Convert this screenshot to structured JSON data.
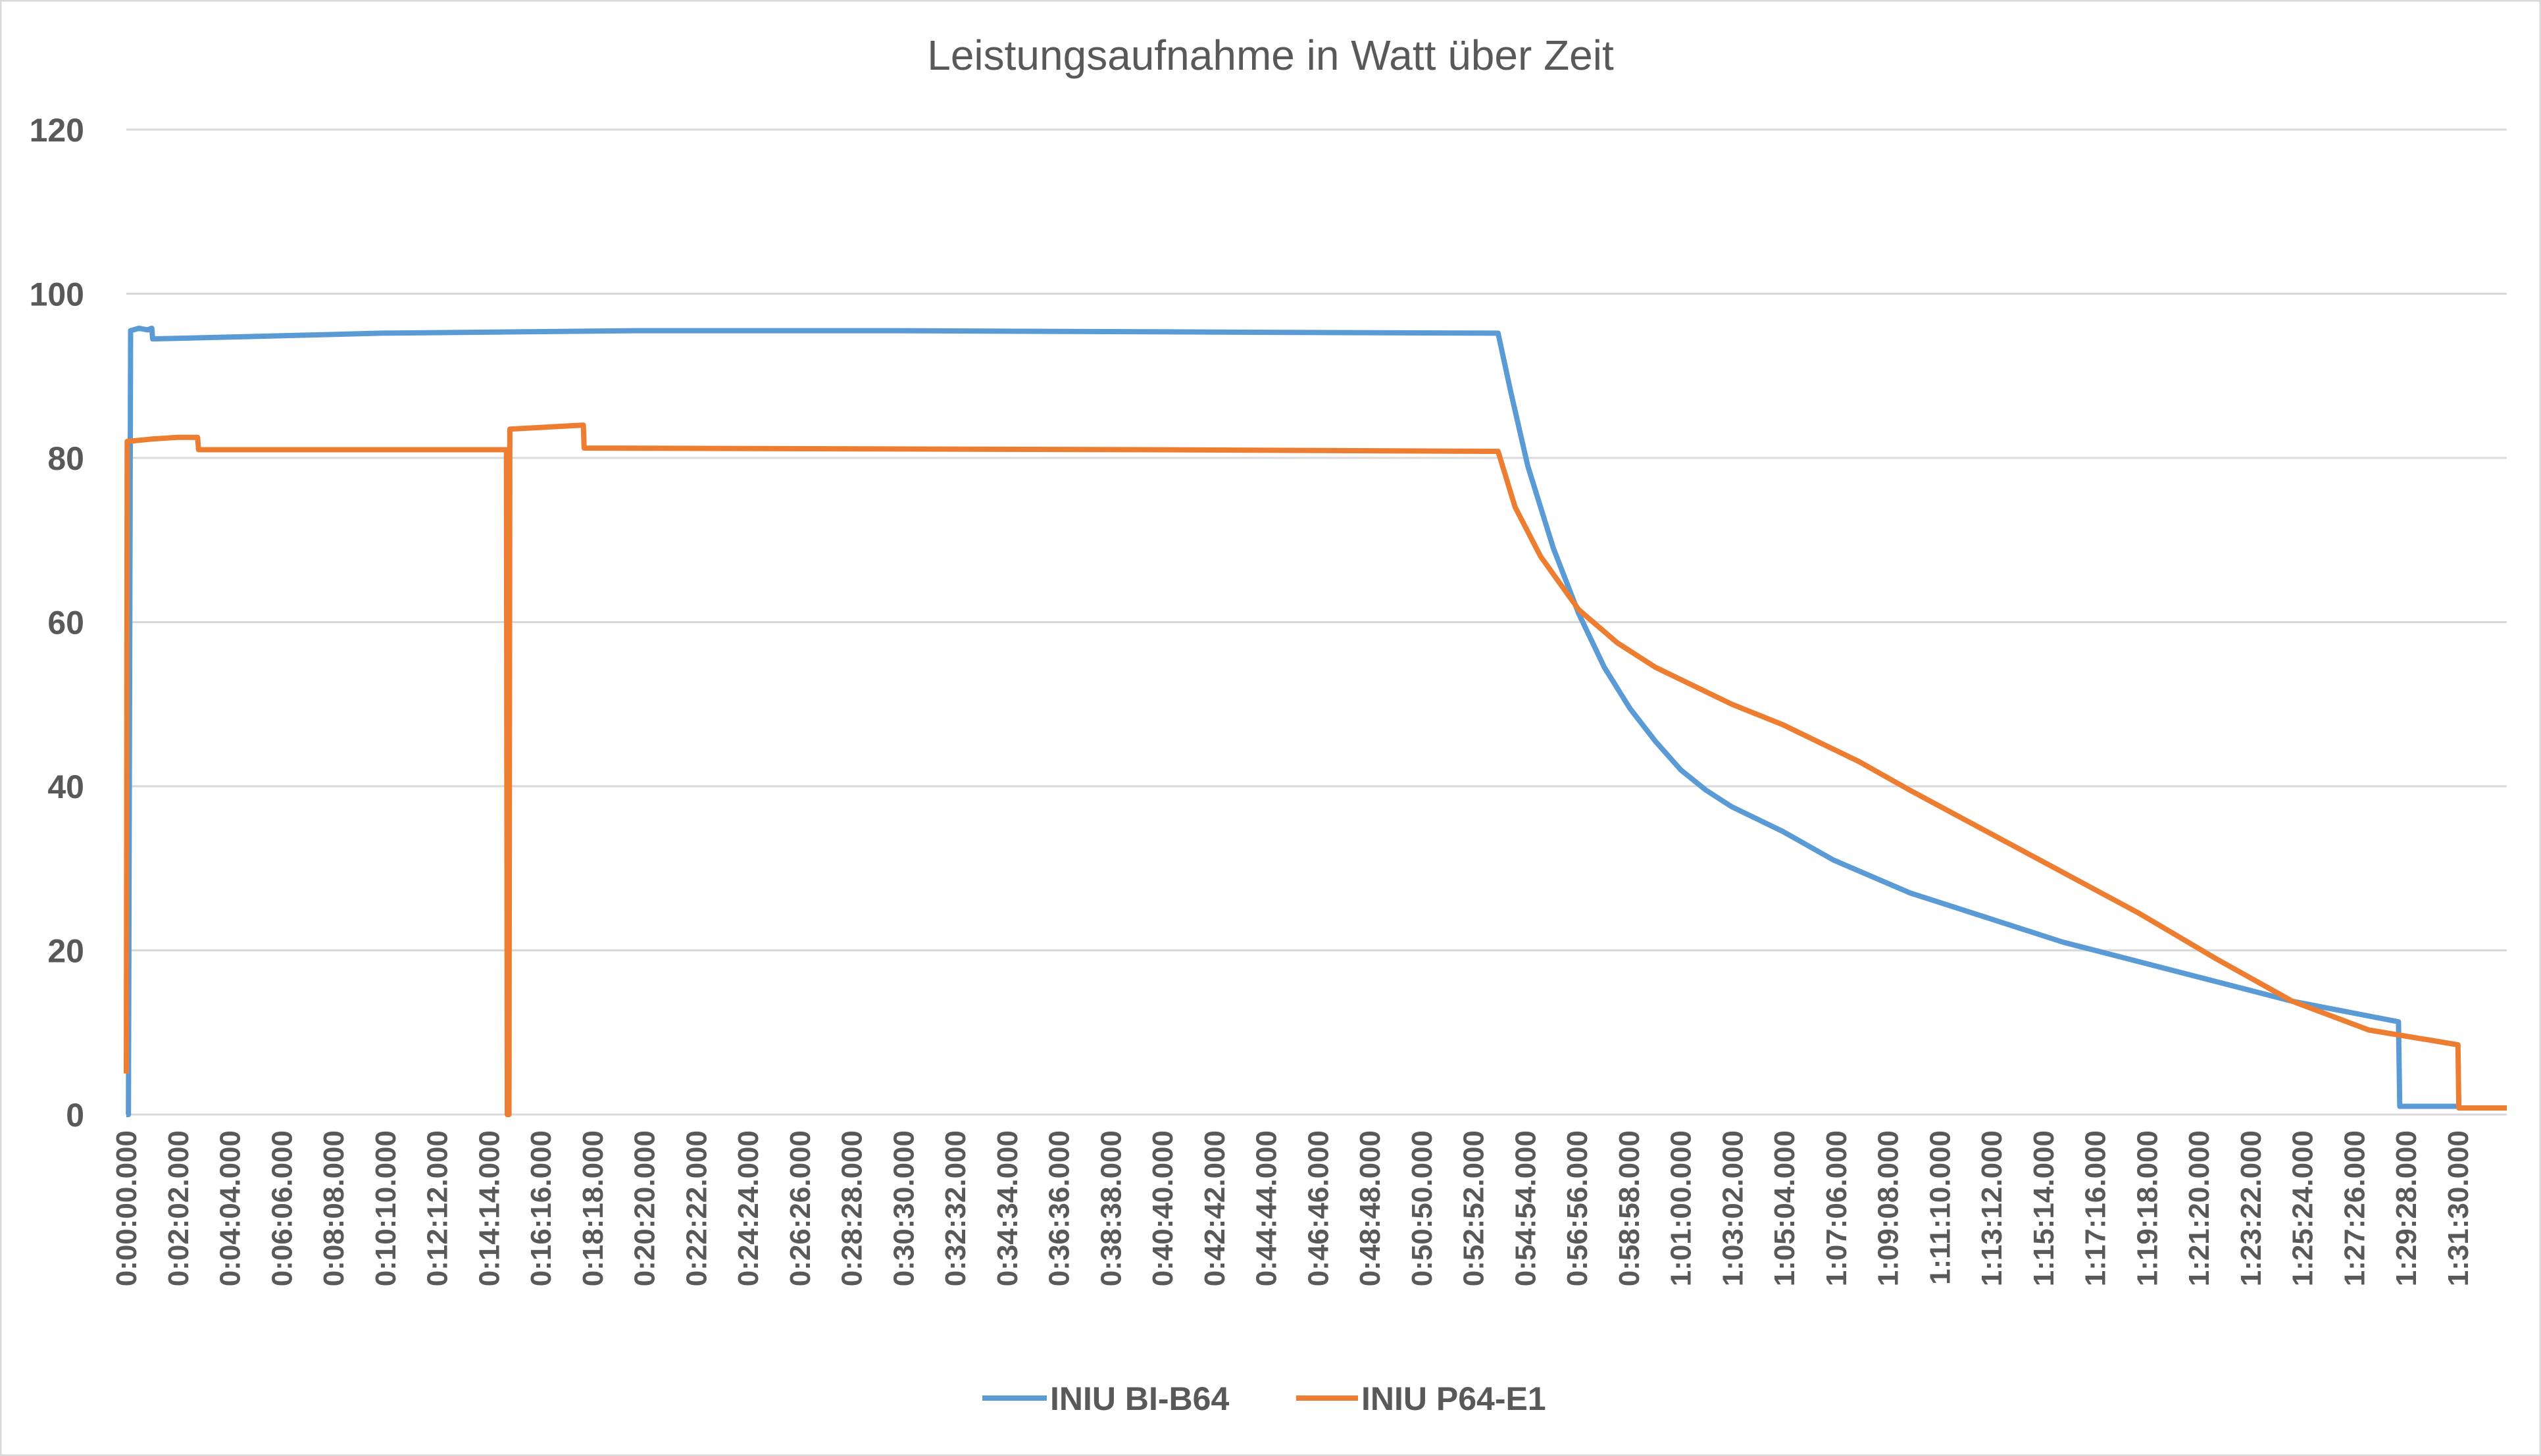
{
  "chart_data": {
    "type": "line",
    "title": "Leistungsaufnahme in Watt über Zeit",
    "xlabel": "",
    "ylabel": "",
    "ylim": [
      0,
      120
    ],
    "yticks": [
      "0",
      "20",
      "40",
      "60",
      "80",
      "100",
      "120"
    ],
    "xlim": [
      "0:00:00",
      "1:33:25"
    ],
    "grid": true,
    "legend": "bottom",
    "xtick_labels": [
      "0:00:00.000",
      "0:02:02.000",
      "0:04:04.000",
      "0:06:06.000",
      "0:08:08.000",
      "0:10:10.000",
      "0:12:12.000",
      "0:14:14.000",
      "0:16:16.000",
      "0:18:18.000",
      "0:20:20.000",
      "0:22:22.000",
      "0:24:24.000",
      "0:26:26.000",
      "0:28:28.000",
      "0:30:30.000",
      "0:32:32.000",
      "0:34:34.000",
      "0:36:36.000",
      "0:38:38.000",
      "0:40:40.000",
      "0:42:42.000",
      "0:44:44.000",
      "0:46:46.000",
      "0:48:48.000",
      "0:50:50.000",
      "0:52:52.000",
      "0:54:54.000",
      "0:56:56.000",
      "0:58:58.000",
      "1:01:00.000",
      "1:03:02.000",
      "1:05:04.000",
      "1:07:06.000",
      "1:09:08.000",
      "1:11:10.000",
      "1:13:12.000",
      "1:15:14.000",
      "1:17:16.000",
      "1:19:18.000",
      "1:21:20.000",
      "1:23:22.000",
      "1:25:24.000",
      "1:27:26.000",
      "1:29:28.000",
      "1:31:30.000"
    ],
    "series": [
      {
        "name": "INIU BI-B64",
        "color": "#5B9BD5",
        "points": [
          [
            "0:00:00",
            0
          ],
          [
            "0:00:05",
            0
          ],
          [
            "0:00:10",
            95.5
          ],
          [
            "0:00:30",
            95.8
          ],
          [
            "0:00:50",
            95.6
          ],
          [
            "0:01:00",
            95.8
          ],
          [
            "0:01:02",
            94.5
          ],
          [
            "0:05:00",
            94.8
          ],
          [
            "0:10:00",
            95.2
          ],
          [
            "0:20:00",
            95.5
          ],
          [
            "0:30:00",
            95.5
          ],
          [
            "0:45:00",
            95.3
          ],
          [
            "0:53:50",
            95.2
          ],
          [
            "0:54:20",
            88
          ],
          [
            "0:55:00",
            79
          ],
          [
            "0:56:00",
            69
          ],
          [
            "0:57:00",
            61
          ],
          [
            "0:58:00",
            54.5
          ],
          [
            "0:59:00",
            49.5
          ],
          [
            "1:00:00",
            45.5
          ],
          [
            "1:01:00",
            42
          ],
          [
            "1:02:00",
            39.5
          ],
          [
            "1:03:00",
            37.5
          ],
          [
            "1:05:00",
            34.5
          ],
          [
            "1:07:00",
            31
          ],
          [
            "1:10:00",
            27
          ],
          [
            "1:13:00",
            24
          ],
          [
            "1:16:00",
            21
          ],
          [
            "1:20:00",
            17.8
          ],
          [
            "1:25:00",
            13.8
          ],
          [
            "1:29:10",
            11.3
          ],
          [
            "1:29:13",
            1
          ],
          [
            "1:31:30",
            1
          ]
        ]
      },
      {
        "name": "INIU P64-E1",
        "color": "#ED7D31",
        "points": [
          [
            "0:00:00",
            5
          ],
          [
            "0:00:02",
            82
          ],
          [
            "0:01:00",
            82.3
          ],
          [
            "0:02:00",
            82.5
          ],
          [
            "0:02:48",
            82.5
          ],
          [
            "0:02:50",
            81
          ],
          [
            "0:14:55",
            81
          ],
          [
            "0:14:57",
            0
          ],
          [
            "0:15:01",
            0
          ],
          [
            "0:15:03",
            83.5
          ],
          [
            "0:17:56",
            84
          ],
          [
            "0:17:58",
            81.2
          ],
          [
            "0:40:00",
            81
          ],
          [
            "0:53:50",
            80.8
          ],
          [
            "0:54:30",
            74
          ],
          [
            "0:55:30",
            68
          ],
          [
            "0:57:00",
            61.5
          ],
          [
            "0:58:30",
            57.5
          ],
          [
            "1:00:00",
            54.5
          ],
          [
            "1:03:00",
            50
          ],
          [
            "1:05:00",
            47.5
          ],
          [
            "1:08:00",
            43
          ],
          [
            "1:10:00",
            39.5
          ],
          [
            "1:13:00",
            34.5
          ],
          [
            "1:16:00",
            29.5
          ],
          [
            "1:19:00",
            24.5
          ],
          [
            "1:22:00",
            19
          ],
          [
            "1:25:00",
            13.8
          ],
          [
            "1:28:00",
            10.3
          ],
          [
            "1:31:30",
            8.5
          ],
          [
            "1:31:32",
            0.8
          ],
          [
            "1:33:25",
            0.8
          ]
        ]
      }
    ]
  }
}
